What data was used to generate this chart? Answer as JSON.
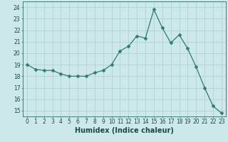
{
  "x": [
    0,
    1,
    2,
    3,
    4,
    5,
    6,
    7,
    8,
    9,
    10,
    11,
    12,
    13,
    14,
    15,
    16,
    17,
    18,
    19,
    20,
    21,
    22,
    23
  ],
  "y": [
    19.0,
    18.6,
    18.5,
    18.5,
    18.2,
    18.0,
    18.0,
    18.0,
    18.3,
    18.5,
    19.0,
    20.2,
    20.6,
    21.5,
    21.3,
    23.8,
    22.2,
    20.9,
    21.6,
    20.4,
    18.8,
    17.0,
    15.4,
    14.8
  ],
  "line_color": "#2e7d6e",
  "marker": "D",
  "marker_size": 2.5,
  "bg_color": "#cce8ea",
  "grid_color": "#aacfd2",
  "xlabel": "Humidex (Indice chaleur)",
  "xlim": [
    -0.5,
    23.5
  ],
  "ylim": [
    14.5,
    24.5
  ],
  "yticks": [
    15,
    16,
    17,
    18,
    19,
    20,
    21,
    22,
    23,
    24
  ],
  "xticks": [
    0,
    1,
    2,
    3,
    4,
    5,
    6,
    7,
    8,
    9,
    10,
    11,
    12,
    13,
    14,
    15,
    16,
    17,
    18,
    19,
    20,
    21,
    22,
    23
  ],
  "tick_color": "#2e6b60",
  "label_color": "#1a4a44",
  "axis_fontsize": 7,
  "tick_fontsize": 5.5,
  "linewidth": 0.9
}
